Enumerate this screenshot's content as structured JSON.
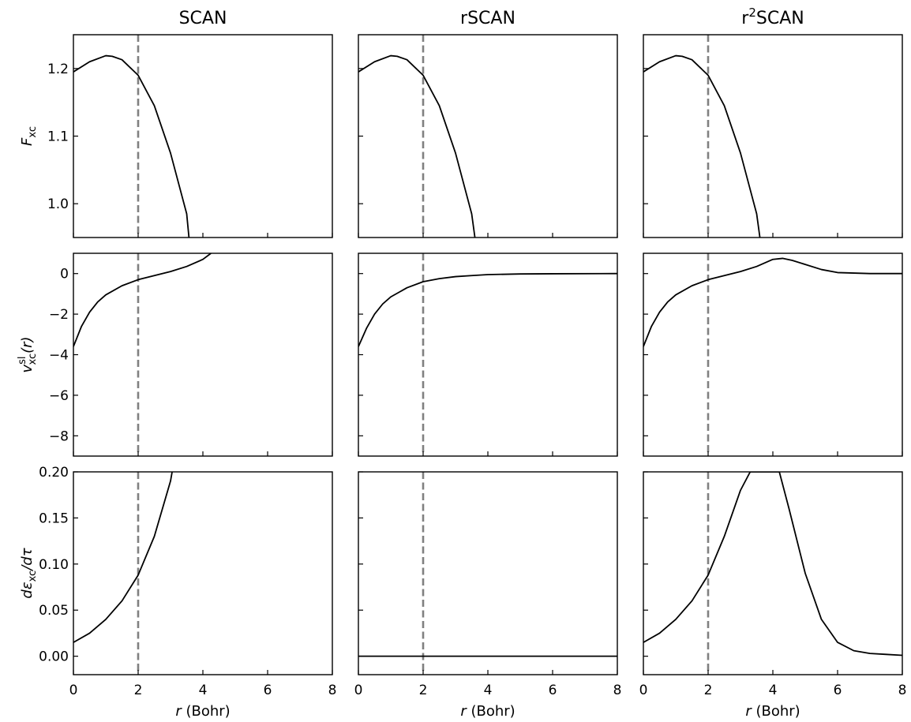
{
  "figure": {
    "columns": [
      {
        "title": "SCAN"
      },
      {
        "title": "rSCAN"
      },
      {
        "title": "r",
        "title_sup": "2",
        "title_rest": "SCAN"
      }
    ],
    "xlabel": {
      "italic": "r",
      "rest": " (Bohr)"
    },
    "ylabels": [
      {
        "main": "F",
        "sub": "xc"
      },
      {
        "main": "v",
        "sup": "sl",
        "sub": "xc",
        "rest": "(r)"
      },
      {
        "main": "dε",
        "sub": "xc",
        "rest": "/dτ"
      }
    ]
  },
  "chart_data": [
    {
      "type": "line",
      "row": 0,
      "col": 0,
      "title": "SCAN",
      "ylabel": "F_xc",
      "xlim": [
        0,
        8
      ],
      "ylim": [
        0.95,
        1.25
      ],
      "xticks": [
        0,
        2,
        4,
        6,
        8
      ],
      "yticks": [
        1.0,
        1.1,
        1.2
      ],
      "ytick_labels": [
        "1.0",
        "1.1",
        "1.2"
      ],
      "vline_x": 2,
      "vline_style": "dashed gray",
      "x": [
        0,
        0.5,
        1.0,
        1.2,
        1.5,
        2.0,
        2.5,
        3.0,
        3.5,
        3.57
      ],
      "y": [
        1.195,
        1.21,
        1.219,
        1.218,
        1.213,
        1.19,
        1.145,
        1.075,
        0.985,
        0.95
      ]
    },
    {
      "type": "line",
      "row": 0,
      "col": 1,
      "title": "rSCAN",
      "xlim": [
        0,
        8
      ],
      "ylim": [
        0.95,
        1.25
      ],
      "xticks": [
        0,
        2,
        4,
        6,
        8
      ],
      "yticks": [
        1.0,
        1.1,
        1.2
      ],
      "vline_x": 2,
      "vline_style": "dashed gray",
      "x": [
        0,
        0.5,
        1.0,
        1.2,
        1.5,
        2.0,
        2.5,
        3.0,
        3.5,
        3.6
      ],
      "y": [
        1.195,
        1.21,
        1.219,
        1.218,
        1.213,
        1.19,
        1.145,
        1.075,
        0.985,
        0.95
      ]
    },
    {
      "type": "line",
      "row": 0,
      "col": 2,
      "title": "r²SCAN",
      "xlim": [
        0,
        8
      ],
      "ylim": [
        0.95,
        1.25
      ],
      "xticks": [
        0,
        2,
        4,
        6,
        8
      ],
      "yticks": [
        1.0,
        1.1,
        1.2
      ],
      "vline_x": 2,
      "vline_style": "dashed gray",
      "x": [
        0,
        0.5,
        1.0,
        1.2,
        1.5,
        2.0,
        2.5,
        3.0,
        3.5,
        3.6
      ],
      "y": [
        1.195,
        1.21,
        1.219,
        1.218,
        1.213,
        1.19,
        1.145,
        1.075,
        0.985,
        0.95
      ]
    },
    {
      "type": "line",
      "row": 1,
      "col": 0,
      "ylabel": "v_xc^sl(r)",
      "xlim": [
        0,
        8
      ],
      "ylim": [
        -9,
        1
      ],
      "xticks": [
        0,
        2,
        4,
        6,
        8
      ],
      "yticks": [
        0,
        -2,
        -4,
        -6,
        -8
      ],
      "ytick_labels": [
        "0",
        "−2",
        "−4",
        "−6",
        "−8"
      ],
      "vline_x": 2,
      "vline_style": "dashed gray",
      "x": [
        0,
        0.25,
        0.5,
        0.75,
        1.0,
        1.5,
        2.0,
        2.5,
        3.0,
        3.5,
        4.0,
        4.25
      ],
      "y": [
        -3.6,
        -2.6,
        -1.9,
        -1.4,
        -1.05,
        -0.6,
        -0.3,
        -0.1,
        0.1,
        0.35,
        0.7,
        1.0
      ]
    },
    {
      "type": "line",
      "row": 1,
      "col": 1,
      "xlim": [
        0,
        8
      ],
      "ylim": [
        -9,
        1
      ],
      "xticks": [
        0,
        2,
        4,
        6,
        8
      ],
      "yticks": [
        0,
        -2,
        -4,
        -6,
        -8
      ],
      "vline_x": 2,
      "vline_style": "dashed gray",
      "x": [
        0,
        0.25,
        0.5,
        0.75,
        1.0,
        1.5,
        2.0,
        2.5,
        3.0,
        3.5,
        4.0,
        5.0,
        6.0,
        8.0
      ],
      "y": [
        -3.6,
        -2.7,
        -2.0,
        -1.5,
        -1.15,
        -0.7,
        -0.4,
        -0.25,
        -0.15,
        -0.1,
        -0.05,
        -0.02,
        -0.01,
        0.0
      ]
    },
    {
      "type": "line",
      "row": 1,
      "col": 2,
      "xlim": [
        0,
        8
      ],
      "ylim": [
        -9,
        1
      ],
      "xticks": [
        0,
        2,
        4,
        6,
        8
      ],
      "yticks": [
        0,
        -2,
        -4,
        -6,
        -8
      ],
      "vline_x": 2,
      "vline_style": "dashed gray",
      "x": [
        0,
        0.25,
        0.5,
        0.75,
        1.0,
        1.5,
        2.0,
        2.5,
        3.0,
        3.5,
        4.0,
        4.3,
        4.6,
        5.0,
        5.5,
        6.0,
        7.0,
        8.0
      ],
      "y": [
        -3.6,
        -2.6,
        -1.9,
        -1.4,
        -1.05,
        -0.6,
        -0.3,
        -0.1,
        0.1,
        0.35,
        0.7,
        0.75,
        0.65,
        0.45,
        0.2,
        0.05,
        0.0,
        0.0
      ]
    },
    {
      "type": "line",
      "row": 2,
      "col": 0,
      "ylabel": "dε_xc/dτ",
      "xlabel": "r (Bohr)",
      "xlim": [
        0,
        8
      ],
      "ylim": [
        -0.02,
        0.2
      ],
      "xticks": [
        0,
        2,
        4,
        6,
        8
      ],
      "yticks": [
        0.0,
        0.05,
        0.1,
        0.15,
        0.2
      ],
      "ytick_labels": [
        "0.00",
        "0.05",
        "0.10",
        "0.15",
        "0.20"
      ],
      "vline_x": 2,
      "vline_style": "dashed gray",
      "x": [
        0,
        0.5,
        1.0,
        1.5,
        2.0,
        2.5,
        3.0,
        3.05
      ],
      "y": [
        0.015,
        0.025,
        0.04,
        0.06,
        0.088,
        0.13,
        0.19,
        0.2
      ]
    },
    {
      "type": "line",
      "row": 2,
      "col": 1,
      "xlabel": "r (Bohr)",
      "xlim": [
        0,
        8
      ],
      "ylim": [
        -0.02,
        0.2
      ],
      "xticks": [
        0,
        2,
        4,
        6,
        8
      ],
      "yticks": [
        0.0,
        0.05,
        0.1,
        0.15,
        0.2
      ],
      "vline_x": 2,
      "vline_style": "dashed gray",
      "x": [
        0,
        8
      ],
      "y": [
        0.0,
        0.0
      ]
    },
    {
      "type": "line",
      "row": 2,
      "col": 2,
      "xlabel": "r (Bohr)",
      "xlim": [
        0,
        8
      ],
      "ylim": [
        -0.02,
        0.2
      ],
      "xticks": [
        0,
        2,
        4,
        6,
        8
      ],
      "yticks": [
        0.0,
        0.05,
        0.1,
        0.15,
        0.2
      ],
      "vline_x": 2,
      "vline_style": "dashed gray",
      "x": [
        0,
        0.5,
        1.0,
        1.5,
        2.0,
        2.5,
        3.0,
        3.3,
        4.2,
        4.5,
        5.0,
        5.5,
        6.0,
        6.5,
        7.0,
        7.5,
        8.0
      ],
      "y": [
        0.015,
        0.025,
        0.04,
        0.06,
        0.088,
        0.13,
        0.18,
        0.2,
        0.2,
        0.16,
        0.09,
        0.04,
        0.015,
        0.006,
        0.003,
        0.002,
        0.001
      ]
    }
  ]
}
